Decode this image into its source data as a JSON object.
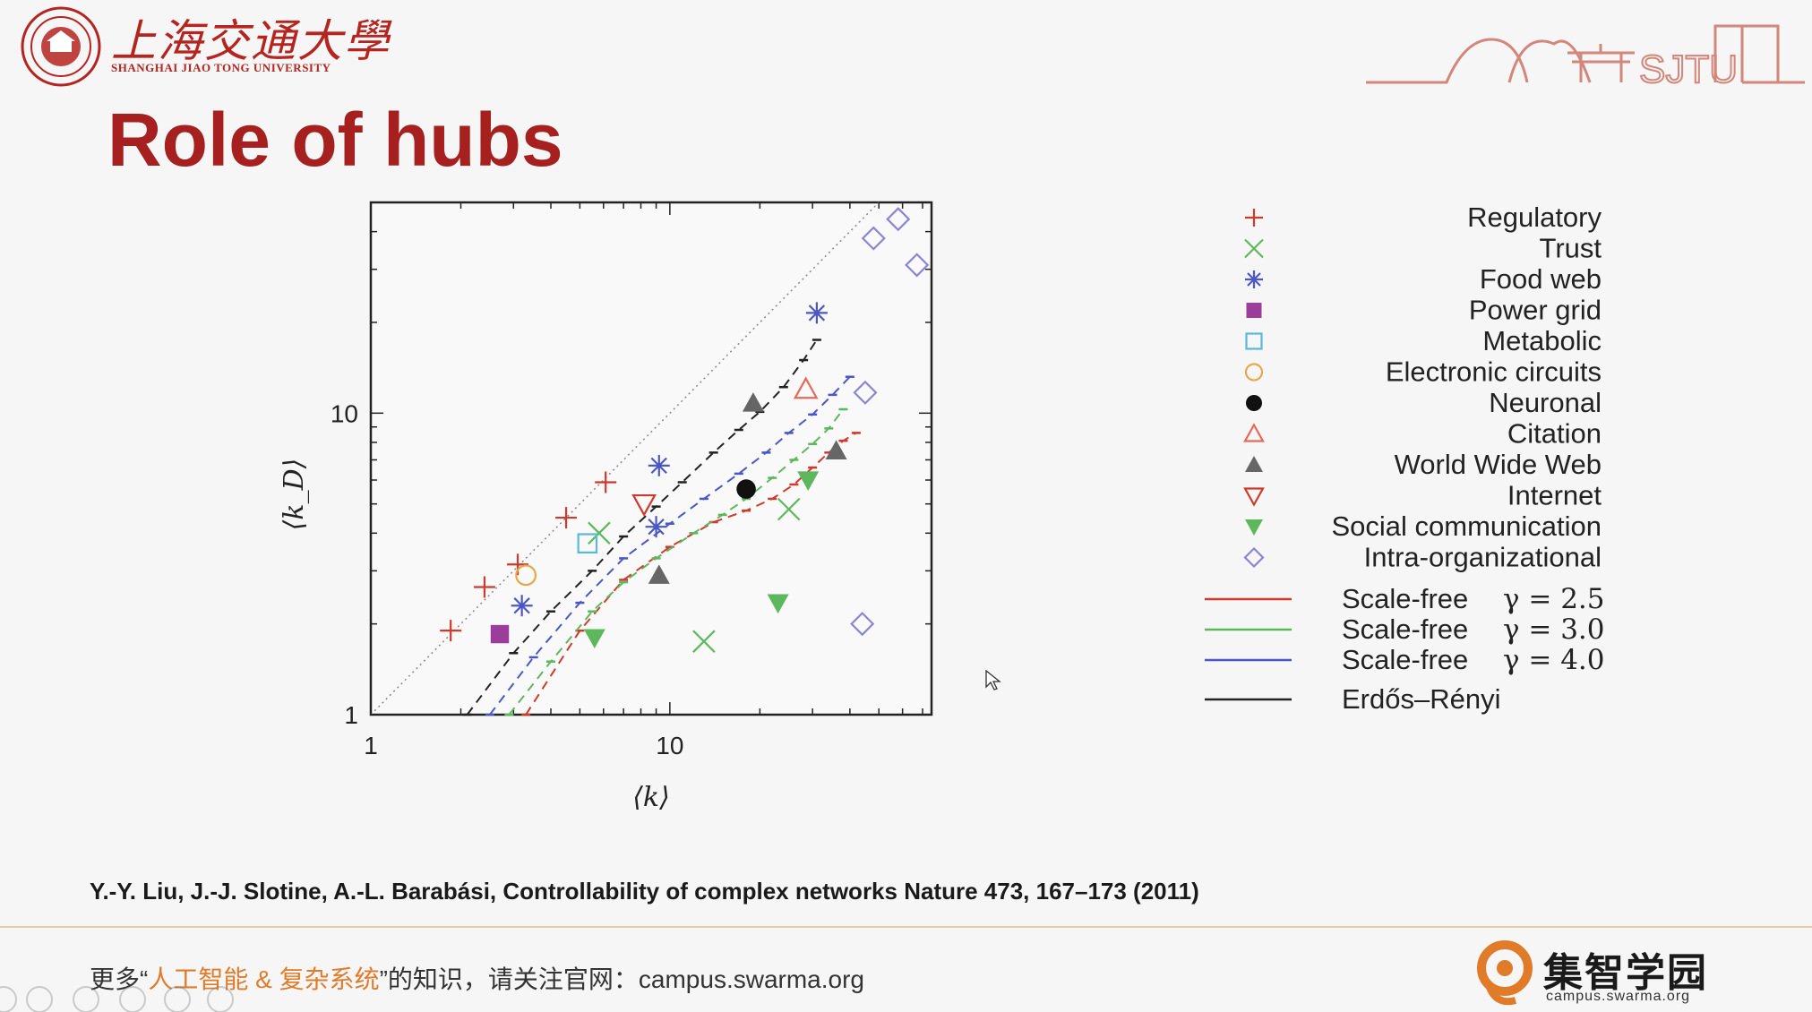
{
  "header": {
    "university_cn": "上海交通大學",
    "university_en": "SHANGHAI JIAO TONG UNIVERSITY",
    "banner_text": "SJTU"
  },
  "slide": {
    "title": "Role of hubs",
    "citation": "Y.-Y. Liu, J.-J. Slotine, A.-L. Barabási, Controllability of complex networks Nature 473, 167–173 (2011)"
  },
  "footer": {
    "prefix": "更多“",
    "highlight": "人工智能 & 复杂系统",
    "suffix": "”的知识，请关注官网：campus.swarma.org",
    "brand_name": "集智学园",
    "brand_url": "campus.swarma.org"
  },
  "chart_data": {
    "type": "scatter",
    "xlabel": "⟨k⟩",
    "ylabel": "⟨k_D⟩",
    "xscale": "log",
    "yscale": "log",
    "xlim": [
      1,
      75
    ],
    "ylim": [
      1,
      50
    ],
    "xticks": [
      {
        "value": 1,
        "label": "1"
      },
      {
        "value": 10,
        "label": "10"
      }
    ],
    "yticks": [
      {
        "value": 1,
        "label": "1"
      },
      {
        "value": 10,
        "label": "10"
      }
    ],
    "diagonal_reference": "dotted",
    "legend_position": "right",
    "colors": {
      "red": "#d0392b",
      "green": "#5db85d",
      "blue": "#4a57c4",
      "magenta": "#9b3d9b",
      "cyan": "#5bb8d8",
      "orange": "#e6a94a",
      "black": "#111111",
      "salmon": "#e26a5a",
      "gray": "#666666",
      "lavender": "#8a85d0"
    },
    "series": [
      {
        "name": "Regulatory",
        "marker": "plus",
        "color": "#d0392b",
        "points": [
          [
            1.85,
            1.9
          ],
          [
            2.4,
            2.65
          ],
          [
            3.1,
            3.15
          ],
          [
            4.5,
            4.5
          ],
          [
            6.1,
            5.9
          ]
        ]
      },
      {
        "name": "Trust",
        "marker": "x",
        "color": "#5db85d",
        "points": [
          [
            5.8,
            4.0
          ],
          [
            13.0,
            1.75
          ],
          [
            25.0,
            4.8
          ]
        ]
      },
      {
        "name": "Food web",
        "marker": "asterisk",
        "color": "#4a57c4",
        "points": [
          [
            3.2,
            2.3
          ],
          [
            9.2,
            6.7
          ],
          [
            9.0,
            4.2
          ],
          [
            31.0,
            21.5
          ]
        ]
      },
      {
        "name": "Power grid",
        "marker": "square-filled",
        "color": "#9b3d9b",
        "points": [
          [
            2.7,
            1.85
          ]
        ]
      },
      {
        "name": "Metabolic",
        "marker": "square-open",
        "color": "#5bb8d8",
        "points": [
          [
            5.3,
            3.7
          ]
        ]
      },
      {
        "name": "Electronic circuits",
        "marker": "circle-open",
        "color": "#e6a94a",
        "points": [
          [
            3.3,
            2.9
          ]
        ]
      },
      {
        "name": "Neuronal",
        "marker": "circle-filled",
        "color": "#111111",
        "points": [
          [
            18.0,
            5.6
          ]
        ]
      },
      {
        "name": "Citation",
        "marker": "triangle-up-open",
        "color": "#e26a5a",
        "points": [
          [
            28.5,
            12.0
          ]
        ]
      },
      {
        "name": "World Wide Web",
        "marker": "triangle-up-filled",
        "color": "#666666",
        "points": [
          [
            19.0,
            10.8
          ],
          [
            9.2,
            2.9
          ],
          [
            36.0,
            7.5
          ]
        ]
      },
      {
        "name": "Internet",
        "marker": "triangle-down-open",
        "color": "#d0392b",
        "points": [
          [
            8.2,
            5.0
          ]
        ]
      },
      {
        "name": "Social communication",
        "marker": "triangle-down-filled",
        "color": "#5db85d",
        "points": [
          [
            5.6,
            1.8
          ],
          [
            23.0,
            2.35
          ],
          [
            29.0,
            6.0
          ]
        ]
      },
      {
        "name": "Intra-organizational",
        "marker": "diamond-open",
        "color": "#8a85d0",
        "points": [
          [
            48.0,
            38.0
          ],
          [
            58.0,
            44.0
          ],
          [
            67.0,
            31.0
          ],
          [
            45.0,
            11.7
          ],
          [
            44.0,
            2.0
          ]
        ]
      }
    ],
    "model_curves": [
      {
        "name": "Scale-free",
        "gamma": "γ = 2.5",
        "color": "#d0392b",
        "points": [
          [
            3.3,
            1.0
          ],
          [
            5,
            1.9
          ],
          [
            7,
            2.8
          ],
          [
            10,
            3.6
          ],
          [
            14,
            4.35
          ],
          [
            18,
            4.75
          ],
          [
            22,
            5.2
          ],
          [
            26,
            5.8
          ],
          [
            30,
            6.6
          ],
          [
            34,
            7.4
          ],
          [
            38,
            8.1
          ],
          [
            42,
            8.6
          ]
        ]
      },
      {
        "name": "Scale-free",
        "gamma": "γ = 3.0",
        "color": "#5db85d",
        "points": [
          [
            2.9,
            1.0
          ],
          [
            4,
            1.5
          ],
          [
            5.5,
            2.2
          ],
          [
            7,
            2.75
          ],
          [
            9,
            3.3
          ],
          [
            12,
            4.0
          ],
          [
            15,
            4.6
          ],
          [
            18,
            5.2
          ],
          [
            22,
            6.1
          ],
          [
            26,
            7.0
          ],
          [
            30,
            7.9
          ],
          [
            34,
            8.9
          ],
          [
            38,
            10.3
          ]
        ]
      },
      {
        "name": "Scale-free",
        "gamma": "γ = 4.0",
        "color": "#4a57c4",
        "points": [
          [
            2.5,
            1.0
          ],
          [
            3.5,
            1.55
          ],
          [
            5,
            2.35
          ],
          [
            7,
            3.3
          ],
          [
            10,
            4.3
          ],
          [
            13,
            5.2
          ],
          [
            17,
            6.3
          ],
          [
            21,
            7.4
          ],
          [
            25,
            8.6
          ],
          [
            30,
            9.9
          ],
          [
            35,
            11.5
          ],
          [
            40,
            13.2
          ]
        ]
      },
      {
        "name": "Erdős–Rényi",
        "gamma": "",
        "color": "#222222",
        "points": [
          [
            2.1,
            1.0
          ],
          [
            3,
            1.6
          ],
          [
            4,
            2.2
          ],
          [
            5.5,
            3.0
          ],
          [
            7,
            3.9
          ],
          [
            9,
            4.9
          ],
          [
            11,
            5.9
          ],
          [
            14,
            7.4
          ],
          [
            17,
            8.8
          ],
          [
            20,
            10.1
          ],
          [
            24,
            12.2
          ],
          [
            28,
            15.0
          ],
          [
            31,
            17.5
          ]
        ]
      }
    ]
  }
}
